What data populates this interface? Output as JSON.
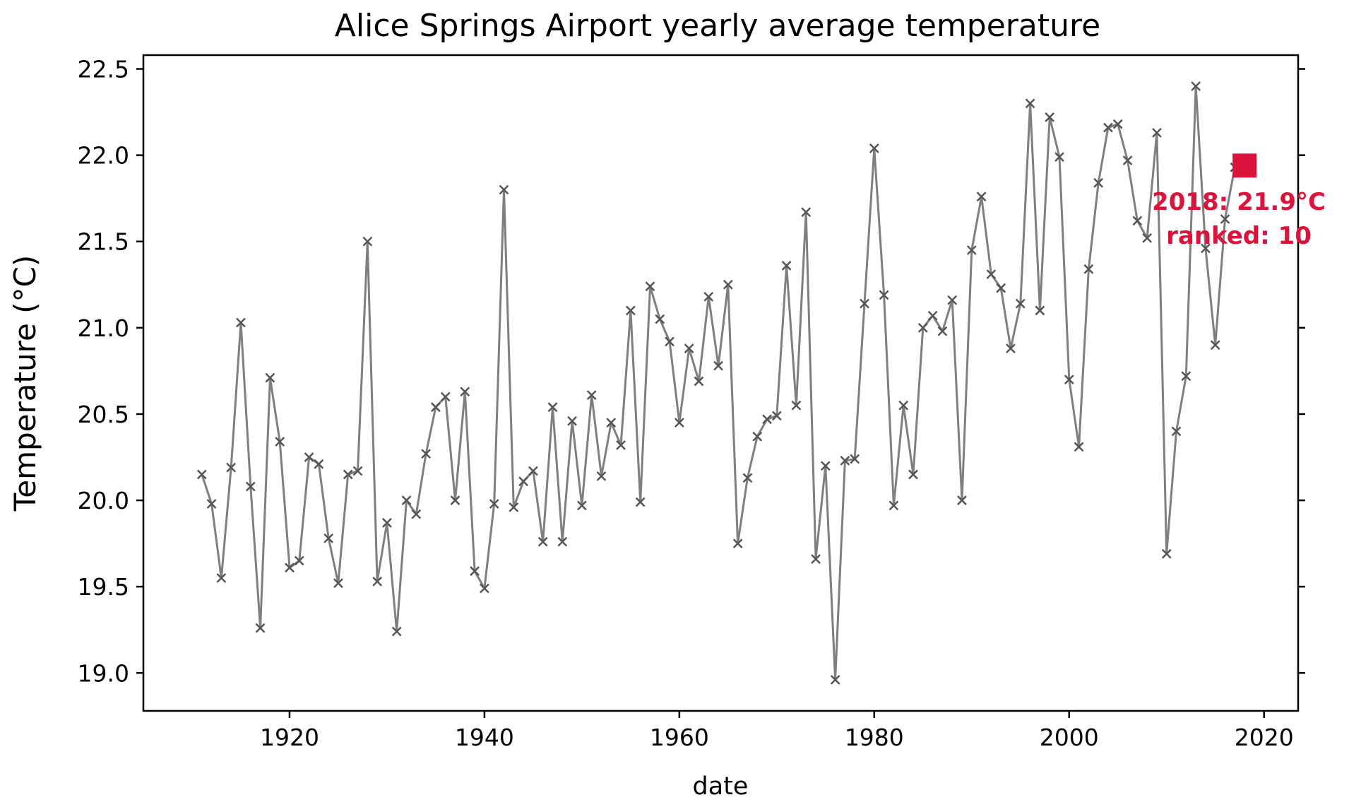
{
  "chart_data": {
    "type": "line",
    "title": "Alice Springs Airport yearly average temperature",
    "xlabel": "date",
    "ylabel": "Temperature (°C)",
    "xlim": [
      1905,
      2023.5
    ],
    "ylim": [
      18.78,
      22.58
    ],
    "xticks": [
      1920,
      1940,
      1960,
      1980,
      2000,
      2020
    ],
    "yticks": [
      19.0,
      19.5,
      20.0,
      20.5,
      21.0,
      21.5,
      22.0,
      22.5
    ],
    "ytick_labels": [
      "19.0",
      "19.5",
      "20.0",
      "20.5",
      "21.0",
      "21.5",
      "22.0",
      "22.5"
    ],
    "grid": false,
    "colors": {
      "series": "#7f7f7f",
      "marker": "#555555",
      "highlight": "#dc143c"
    },
    "series": [
      {
        "x": [
          1911,
          1912,
          1913,
          1914,
          1915,
          1916,
          1917,
          1918,
          1919,
          1920,
          1921,
          1922,
          1923,
          1924,
          1925,
          1926,
          1927,
          1928,
          1929,
          1930,
          1931,
          1932,
          1933,
          1934,
          1935,
          1936,
          1937,
          1938,
          1939,
          1940,
          1941,
          1942,
          1943,
          1944,
          1945,
          1946,
          1947,
          1948,
          1949,
          1950,
          1951,
          1952,
          1953,
          1954,
          1955,
          1956,
          1957,
          1958,
          1959,
          1960,
          1961,
          1962,
          1963,
          1964,
          1965,
          1966,
          1967,
          1968,
          1969,
          1970,
          1971,
          1972,
          1973,
          1974,
          1975,
          1976,
          1977,
          1978,
          1979,
          1980,
          1981,
          1982,
          1983,
          1984,
          1985,
          1986,
          1987,
          1988,
          1989,
          1990,
          1991,
          1992,
          1993,
          1994,
          1995,
          1996,
          1997,
          1998,
          1999,
          2000,
          2001,
          2002,
          2003,
          2004,
          2005,
          2006,
          2007,
          2008,
          2009,
          2010,
          2011,
          2012,
          2013,
          2014,
          2015,
          2016,
          2017,
          2018
        ],
        "values": [
          20.15,
          19.98,
          19.55,
          20.19,
          21.03,
          20.08,
          19.26,
          20.71,
          20.34,
          19.61,
          19.65,
          20.25,
          20.21,
          19.78,
          19.52,
          20.15,
          20.17,
          21.5,
          19.53,
          19.87,
          19.24,
          20.0,
          19.92,
          20.27,
          20.54,
          20.6,
          20.0,
          20.63,
          19.59,
          19.49,
          19.98,
          21.8,
          19.96,
          20.11,
          20.17,
          19.76,
          20.54,
          19.76,
          20.46,
          19.97,
          20.61,
          20.14,
          20.45,
          20.32,
          21.1,
          19.99,
          21.24,
          21.05,
          20.92,
          20.45,
          20.88,
          20.69,
          21.18,
          20.78,
          21.25,
          19.75,
          20.13,
          20.37,
          20.47,
          20.49,
          21.36,
          20.55,
          21.67,
          19.66,
          20.2,
          18.96,
          20.23,
          20.24,
          21.14,
          22.04,
          21.19,
          19.97,
          20.55,
          20.15,
          21.0,
          21.07,
          20.98,
          21.16,
          20.0,
          21.45,
          21.76,
          21.31,
          21.23,
          20.88,
          21.14,
          22.3,
          21.1,
          22.22,
          21.99,
          20.7,
          20.31,
          21.34,
          21.84,
          22.16,
          22.18,
          21.97,
          21.62,
          21.52,
          22.13,
          19.69,
          20.4,
          20.72,
          22.4,
          21.46,
          20.9,
          21.63,
          21.93,
          21.94
        ]
      }
    ],
    "highlight": {
      "x": 2018,
      "y": 21.94
    },
    "annotation": {
      "line1": "2018: 21.9°C",
      "line2": "ranked: 10"
    }
  }
}
